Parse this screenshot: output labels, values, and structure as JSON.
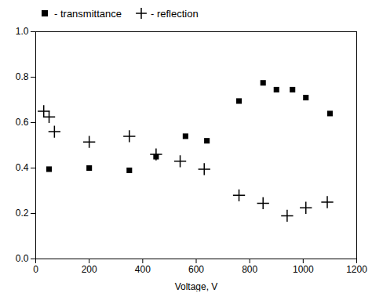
{
  "chart_data": {
    "type": "scatter",
    "xlabel": "Voltage, V",
    "xlim": [
      0,
      1200
    ],
    "ylim": [
      0.0,
      1.0
    ],
    "xticks": [
      0,
      200,
      400,
      600,
      800,
      1000,
      1200
    ],
    "yticks": [
      {
        "value": 0.0,
        "label": "0.0"
      },
      0.2,
      0.4,
      0.6,
      0.8,
      {
        "value": 1.0,
        "label": "1.0"
      }
    ],
    "grid": false,
    "legend": "upper left",
    "series": [
      {
        "name": "- transmittance",
        "color": "black",
        "marker": "square",
        "x": [
          50,
          200,
          350,
          450,
          560,
          640,
          760,
          850,
          900,
          960,
          1010,
          1100
        ],
        "values": [
          0.395,
          0.4,
          0.39,
          0.45,
          0.54,
          0.52,
          0.695,
          0.775,
          0.745,
          0.745,
          0.71,
          0.64
        ]
      },
      {
        "name": "- reflection",
        "color": "black",
        "marker": "plus",
        "x": [
          30,
          50,
          70,
          200,
          350,
          450,
          540,
          630,
          760,
          850,
          940,
          1010,
          1090
        ],
        "values": [
          0.65,
          0.625,
          0.56,
          0.515,
          0.54,
          0.46,
          0.43,
          0.395,
          0.28,
          0.245,
          0.19,
          0.225,
          0.25
        ]
      }
    ]
  }
}
